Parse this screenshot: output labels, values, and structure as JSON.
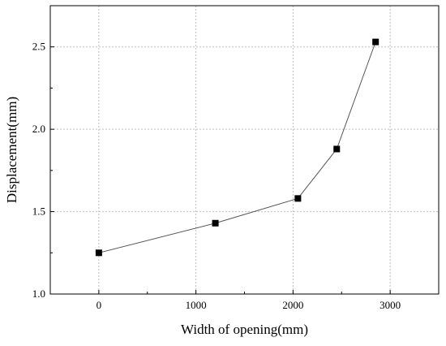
{
  "chart_data": {
    "type": "line",
    "title": "",
    "xlabel": "Width of opening(mm)",
    "ylabel": "Displacement(mm)",
    "xlim": [
      -500,
      3500
    ],
    "ylim": [
      1.0,
      2.75
    ],
    "xticks": [
      0,
      1000,
      2000,
      3000
    ],
    "yticks": [
      1.0,
      1.5,
      2.0,
      2.5
    ],
    "xtick_labels": [
      "0",
      "1000",
      "2000",
      "3000"
    ],
    "ytick_labels": [
      "1.0",
      "1.5",
      "2.0",
      "2.5"
    ],
    "grid": true,
    "marker": "square",
    "series": [
      {
        "x": [
          0,
          1200,
          2050,
          2450,
          2850
        ],
        "y": [
          1.25,
          1.43,
          1.58,
          1.88,
          2.53
        ]
      }
    ],
    "colors": {
      "line": "#555555",
      "marker": "#000000",
      "grid": "#bfbfbf",
      "axis": "#000000"
    }
  }
}
